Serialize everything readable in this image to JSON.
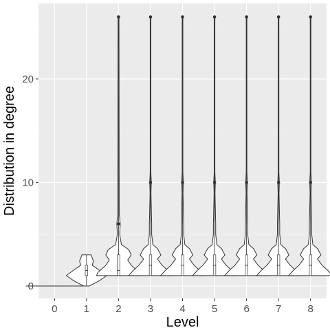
{
  "chart_data": {
    "type": "violin",
    "title": "",
    "xlabel": "Level",
    "ylabel": "Distribution in degree",
    "categories": [
      "0",
      "1",
      "2",
      "3",
      "4",
      "5",
      "6",
      "7",
      "8"
    ],
    "y_ticks": [
      0,
      10,
      20
    ],
    "y_tick_labels": [
      "0",
      "10",
      "20"
    ],
    "ylim": [
      -1.2,
      27.3
    ],
    "grid": true,
    "colors": {
      "panel": "#ebebeb",
      "grid_major": "#ffffff",
      "grid_minor": "#f5f5f5",
      "violin_fill": "#ffffff",
      "violin_stroke": "#333333",
      "point": "#333333",
      "tick": "#333333"
    },
    "groups": [
      {
        "level": "0",
        "profile": [
          [
            0,
            0.5
          ],
          [
            0,
            0.5
          ]
        ],
        "box": {
          "q1": 0,
          "median": 0,
          "q3": 0,
          "whisker_low": 0,
          "whisker_high": 0
        },
        "outliers": []
      },
      {
        "level": "1",
        "profile": [
          [
            0,
            0.05
          ],
          [
            0.5,
            0.22
          ],
          [
            1,
            0.35
          ],
          [
            1.5,
            0.23
          ],
          [
            2,
            0.1
          ],
          [
            2.4,
            0.12
          ],
          [
            3,
            0.08
          ]
        ],
        "box": {
          "q1": 1,
          "median": 1.5,
          "q3": 2,
          "whisker_low": 0,
          "whisker_high": 3
        },
        "outliers": []
      },
      {
        "level": "2",
        "profile": [
          [
            1,
            0.38
          ],
          [
            1.3,
            0.36
          ],
          [
            2,
            0.22
          ],
          [
            2.5,
            0.16
          ],
          [
            3,
            0.22
          ],
          [
            3.5,
            0.18
          ],
          [
            4,
            0.05
          ],
          [
            5,
            0.02
          ],
          [
            6,
            0.03
          ],
          [
            7,
            0.012
          ],
          [
            26,
            0.008
          ]
        ],
        "box": {
          "q1": 1,
          "median": 1.5,
          "q3": 3,
          "whisker_low": 1,
          "whisker_high": 5
        },
        "outliers": [
          6,
          26
        ]
      },
      {
        "level": "3",
        "profile": [
          [
            1,
            0.38
          ],
          [
            1.5,
            0.3
          ],
          [
            2,
            0.2
          ],
          [
            2.6,
            0.12
          ],
          [
            3,
            0.18
          ],
          [
            3.6,
            0.12
          ],
          [
            4,
            0.04
          ],
          [
            5,
            0.02
          ],
          [
            6,
            0.02
          ],
          [
            9,
            0.008
          ],
          [
            10,
            0.014
          ],
          [
            11,
            0.006
          ],
          [
            26,
            0.006
          ]
        ],
        "box": {
          "q1": 1,
          "median": 2,
          "q3": 3,
          "whisker_low": 1,
          "whisker_high": 6
        },
        "outliers": [
          10,
          26
        ]
      },
      {
        "level": "4",
        "profile": [
          [
            1,
            0.38
          ],
          [
            1.5,
            0.3
          ],
          [
            2,
            0.2
          ],
          [
            2.6,
            0.12
          ],
          [
            3,
            0.18
          ],
          [
            3.6,
            0.12
          ],
          [
            4,
            0.04
          ],
          [
            5,
            0.02
          ],
          [
            6,
            0.02
          ],
          [
            9,
            0.008
          ],
          [
            10,
            0.014
          ],
          [
            11,
            0.006
          ],
          [
            26,
            0.006
          ]
        ],
        "box": {
          "q1": 1,
          "median": 2,
          "q3": 3,
          "whisker_low": 1,
          "whisker_high": 6
        },
        "outliers": [
          10,
          26
        ]
      },
      {
        "level": "5",
        "profile": [
          [
            1,
            0.38
          ],
          [
            1.5,
            0.3
          ],
          [
            2,
            0.2
          ],
          [
            2.6,
            0.12
          ],
          [
            3,
            0.18
          ],
          [
            3.6,
            0.12
          ],
          [
            4,
            0.04
          ],
          [
            5,
            0.02
          ],
          [
            6,
            0.02
          ],
          [
            9,
            0.008
          ],
          [
            10,
            0.014
          ],
          [
            11,
            0.006
          ],
          [
            26,
            0.006
          ]
        ],
        "box": {
          "q1": 1,
          "median": 2,
          "q3": 3,
          "whisker_low": 1,
          "whisker_high": 6
        },
        "outliers": [
          10,
          26
        ]
      },
      {
        "level": "6",
        "profile": [
          [
            1,
            0.38
          ],
          [
            1.5,
            0.3
          ],
          [
            2,
            0.2
          ],
          [
            2.6,
            0.12
          ],
          [
            3,
            0.18
          ],
          [
            3.6,
            0.12
          ],
          [
            4,
            0.04
          ],
          [
            5,
            0.02
          ],
          [
            6,
            0.02
          ],
          [
            9,
            0.008
          ],
          [
            10,
            0.014
          ],
          [
            11,
            0.006
          ],
          [
            26,
            0.006
          ]
        ],
        "box": {
          "q1": 1,
          "median": 2,
          "q3": 3,
          "whisker_low": 1,
          "whisker_high": 6
        },
        "outliers": [
          10,
          26
        ]
      },
      {
        "level": "7",
        "profile": [
          [
            1,
            0.38
          ],
          [
            1.5,
            0.3
          ],
          [
            2,
            0.2
          ],
          [
            2.6,
            0.12
          ],
          [
            3,
            0.18
          ],
          [
            3.6,
            0.12
          ],
          [
            4,
            0.04
          ],
          [
            5,
            0.02
          ],
          [
            6,
            0.02
          ],
          [
            9,
            0.008
          ],
          [
            10,
            0.014
          ],
          [
            11,
            0.006
          ],
          [
            26,
            0.006
          ]
        ],
        "box": {
          "q1": 1,
          "median": 2,
          "q3": 3,
          "whisker_low": 1,
          "whisker_high": 6
        },
        "outliers": [
          10,
          26
        ]
      },
      {
        "level": "8",
        "profile": [
          [
            1,
            0.38
          ],
          [
            1.5,
            0.3
          ],
          [
            2,
            0.2
          ],
          [
            2.6,
            0.12
          ],
          [
            3,
            0.18
          ],
          [
            3.6,
            0.12
          ],
          [
            4,
            0.04
          ],
          [
            5,
            0.02
          ],
          [
            6,
            0.02
          ],
          [
            9,
            0.008
          ],
          [
            10,
            0.014
          ],
          [
            11,
            0.006
          ],
          [
            26,
            0.006
          ]
        ],
        "box": {
          "q1": 1,
          "median": 2,
          "q3": 3,
          "whisker_low": 1,
          "whisker_high": 6
        },
        "outliers": [
          10,
          26
        ]
      }
    ]
  }
}
